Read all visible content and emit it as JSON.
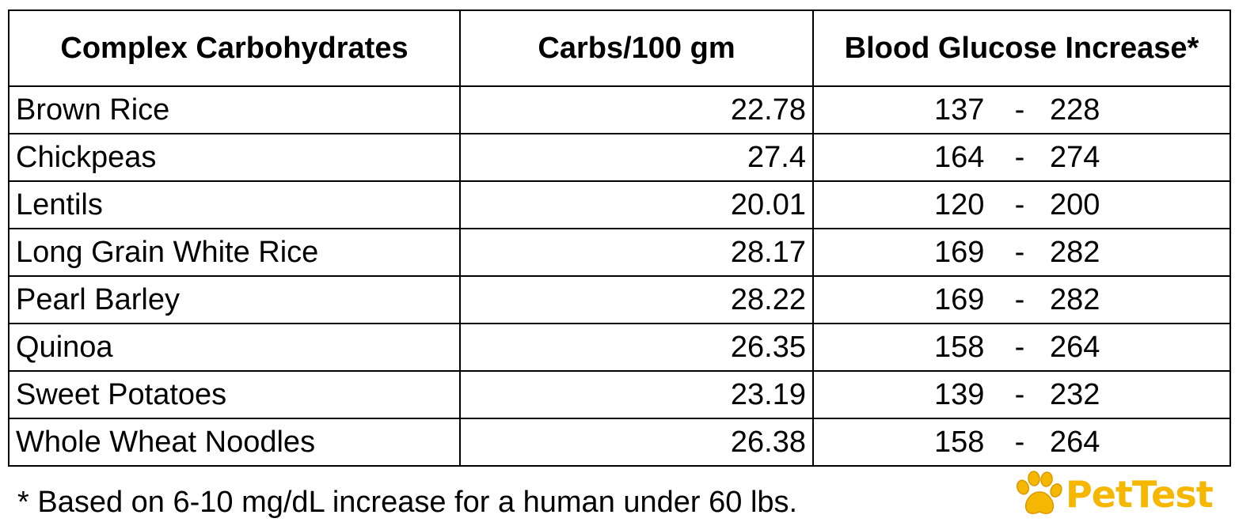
{
  "table": {
    "headers": [
      "Complex Carbohydrates",
      "Carbs/100 gm",
      "Blood Glucose Increase*"
    ],
    "rows": [
      {
        "name": "Brown Rice",
        "carbs": "22.78",
        "low": "137",
        "sep": "-",
        "high": "228"
      },
      {
        "name": "Chickpeas",
        "carbs": "27.4",
        "low": "164",
        "sep": "-",
        "high": "274"
      },
      {
        "name": "Lentils",
        "carbs": "20.01",
        "low": "120",
        "sep": "-",
        "high": "200"
      },
      {
        "name": "Long Grain White Rice",
        "carbs": "28.17",
        "low": "169",
        "sep": "-",
        "high": "282"
      },
      {
        "name": "Pearl Barley",
        "carbs": "28.22",
        "low": "169",
        "sep": "-",
        "high": "282"
      },
      {
        "name": "Quinoa",
        "carbs": "26.35",
        "low": "158",
        "sep": "-",
        "high": "264"
      },
      {
        "name": "Sweet Potatoes",
        "carbs": "23.19",
        "low": "139",
        "sep": "-",
        "high": "232"
      },
      {
        "name": "Whole Wheat Noodles",
        "carbs": "26.38",
        "low": "158",
        "sep": "-",
        "high": "264"
      }
    ]
  },
  "footnote": "* Based on 6-10 mg/dL increase for a human under 60 lbs.",
  "logo": {
    "text": "PetTest",
    "icon": "paw-print-icon",
    "color": "#f5b700"
  }
}
